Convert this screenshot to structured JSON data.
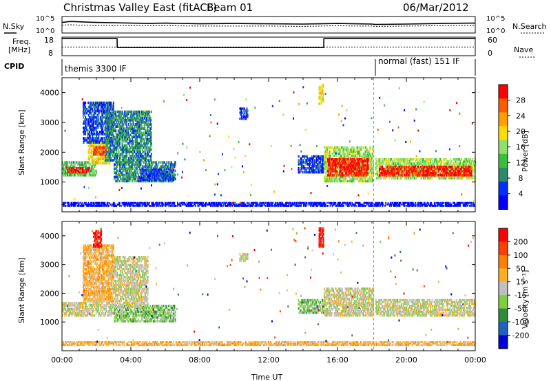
{
  "header": {
    "title": "Christmas Valley East (fitACF)",
    "beam": "Beam 01",
    "date": "06/Mar/2012"
  },
  "noise_panel": {
    "left_label": "N.Sky",
    "right_label": "N.Search",
    "left_ticks": [
      "10^5",
      "10^0"
    ],
    "right_ticks": [
      "10^5",
      "10^0"
    ]
  },
  "freq_panel": {
    "left_label_1": "Freq.",
    "left_label_2": "[MHz]",
    "right_label": "Nave",
    "left_ticks": [
      "18",
      "8"
    ],
    "right_ticks": [
      "60",
      "0"
    ]
  },
  "cpid_panel": {
    "label": "CPID",
    "segments": [
      {
        "text": "themis 3300 IF",
        "start_hour": 0
      },
      {
        "text": "normal (fast) 151 IF",
        "start_hour": 18.1
      }
    ]
  },
  "colors": {
    "power_scale": [
      "#0000ff",
      "#0030ff",
      "#2c8a6a",
      "#3bbf3b",
      "#8fe06a",
      "#ffdc00",
      "#ffa000",
      "#ff5a00",
      "#ff0000"
    ],
    "velocity_scale": [
      "#0000dd",
      "#2060c0",
      "#2f8a3a",
      "#7fd040",
      "#c0c0c0",
      "#ffb020",
      "#ff8000",
      "#ff4000",
      "#ff0000"
    ],
    "ground_scatter": "#c0c0c0"
  },
  "chart_data": [
    {
      "type": "line",
      "name": "noise",
      "x": [
        0,
        0.5,
        1,
        1.5,
        2,
        3,
        4,
        5,
        6,
        8,
        10,
        12,
        14,
        15,
        16,
        17,
        18,
        18.2,
        20,
        22,
        24
      ],
      "series": [
        {
          "name": "N.Sky",
          "values": [
            3.2,
            3.5,
            3.4,
            3.3,
            3.2,
            3.1,
            3.0,
            2.9,
            3.0,
            2.8,
            2.9,
            2.8,
            2.7,
            2.8,
            2.9,
            2.8,
            2.7,
            2.6,
            2.7,
            2.9,
            3.0
          ]
        },
        {
          "name": "N.Search",
          "values": [
            2.4,
            2.5,
            2.4,
            2.4,
            2.3,
            2.3,
            2.2,
            2.2,
            2.2,
            2.1,
            2.1,
            2.1,
            2.0,
            2.1,
            2.2,
            2.1,
            2.1,
            2.0,
            2.1,
            2.2,
            2.3
          ]
        }
      ],
      "ylim": [
        0,
        5
      ],
      "xlim": [
        0,
        24
      ]
    },
    {
      "type": "line",
      "name": "frequency",
      "x": [
        0,
        0.5,
        0.51,
        3.2,
        3.21,
        15.2,
        15.21,
        18.1,
        18.11,
        24
      ],
      "series": [
        {
          "name": "Freq",
          "values": [
            17.2,
            17.2,
            17.2,
            17.2,
            12.4,
            12.4,
            17.2,
            17.2,
            17.2,
            17.2
          ]
        },
        {
          "name": "Nave",
          "values": [
            28,
            28,
            28,
            28,
            28,
            28,
            28,
            28,
            28,
            28
          ]
        }
      ],
      "ylim": [
        8,
        18
      ],
      "xlim": [
        0,
        24
      ]
    },
    {
      "type": "heatmap",
      "name": "power",
      "xlabel": "",
      "ylabel": "Slant Range [km]",
      "xlim": [
        0,
        24
      ],
      "ylim": [
        0,
        4500
      ],
      "yticks": [
        1000,
        2000,
        3000,
        4000
      ],
      "colorbar_label": "Power [dB]",
      "colorbar_ticks": [
        "28",
        "24",
        "20",
        "16",
        "12",
        "8",
        "4"
      ],
      "blobs": [
        {
          "t0": 0.0,
          "t1": 2.0,
          "r0": 1200,
          "r1": 1700,
          "c": 3
        },
        {
          "t0": 0.3,
          "t1": 1.6,
          "r0": 1300,
          "r1": 1500,
          "c": 8
        },
        {
          "t0": 1.5,
          "t1": 2.8,
          "r0": 1600,
          "r1": 2400,
          "c": 5
        },
        {
          "t0": 1.8,
          "t1": 2.5,
          "r0": 1900,
          "r1": 2200,
          "c": 7
        },
        {
          "t0": 1.2,
          "t1": 3.0,
          "r0": 2300,
          "r1": 3700,
          "c": 1
        },
        {
          "t0": 2.5,
          "t1": 5.2,
          "r0": 1700,
          "r1": 3400,
          "c": 2
        },
        {
          "t0": 3.0,
          "t1": 6.6,
          "r0": 1000,
          "r1": 1700,
          "c": 2
        },
        {
          "t0": 4.5,
          "t1": 6.5,
          "r0": 1050,
          "r1": 1450,
          "c": 1
        },
        {
          "t0": 10.3,
          "t1": 10.8,
          "r0": 3100,
          "r1": 3500,
          "c": 1
        },
        {
          "t0": 13.7,
          "t1": 15.2,
          "r0": 1300,
          "r1": 1900,
          "c": 1
        },
        {
          "t0": 14.9,
          "t1": 15.2,
          "r0": 3600,
          "r1": 4300,
          "c": 5
        },
        {
          "t0": 15.2,
          "t1": 18.1,
          "r0": 1000,
          "r1": 2200,
          "c": 4
        },
        {
          "t0": 15.4,
          "t1": 17.8,
          "r0": 1200,
          "r1": 1800,
          "c": 8
        },
        {
          "t0": 18.2,
          "t1": 24.0,
          "r0": 1100,
          "r1": 1800,
          "c": 4
        },
        {
          "t0": 18.4,
          "t1": 23.8,
          "r0": 1200,
          "r1": 1550,
          "c": 8
        },
        {
          "t0": 0.0,
          "t1": 24.0,
          "r0": 180,
          "r1": 330,
          "c": 0
        }
      ]
    },
    {
      "type": "heatmap",
      "name": "velocity",
      "xlabel": "Time UT",
      "ylabel": "Slant Range [km]",
      "xlim": [
        0,
        24
      ],
      "ylim": [
        0,
        4500
      ],
      "yticks": [
        1000,
        2000,
        3000,
        4000
      ],
      "xticks": [
        "00:00",
        "04:00",
        "08:00",
        "12:00",
        "16:00",
        "20:00",
        "00:00"
      ],
      "colorbar_label": "Velocity [m s⁻¹]",
      "colorbar_ticks": [
        "200",
        "100",
        "50",
        "15",
        "-15",
        "-50",
        "-100",
        "-200"
      ],
      "blobs": [
        {
          "t0": 0.0,
          "t1": 3.0,
          "r0": 1200,
          "r1": 1700,
          "c": 4
        },
        {
          "t0": 1.2,
          "t1": 3.0,
          "r0": 1700,
          "r1": 3700,
          "c": 5
        },
        {
          "t0": 1.8,
          "t1": 2.3,
          "r0": 3600,
          "r1": 4200,
          "c": 8
        },
        {
          "t0": 3.0,
          "t1": 6.6,
          "r0": 1000,
          "r1": 1600,
          "c": 3
        },
        {
          "t0": 3.0,
          "t1": 5.0,
          "r0": 1500,
          "r1": 3300,
          "c": 4
        },
        {
          "t0": 10.3,
          "t1": 10.8,
          "r0": 3100,
          "r1": 3400,
          "c": 4
        },
        {
          "t0": 13.7,
          "t1": 15.2,
          "r0": 1300,
          "r1": 1800,
          "c": 3
        },
        {
          "t0": 14.9,
          "t1": 15.2,
          "r0": 3600,
          "r1": 4300,
          "c": 8
        },
        {
          "t0": 15.2,
          "t1": 18.1,
          "r0": 1200,
          "r1": 2200,
          "c": 4
        },
        {
          "t0": 18.2,
          "t1": 24.0,
          "r0": 1200,
          "r1": 1800,
          "c": 4
        },
        {
          "t0": 0.0,
          "t1": 24.0,
          "r0": 180,
          "r1": 330,
          "c": 5
        }
      ]
    }
  ]
}
